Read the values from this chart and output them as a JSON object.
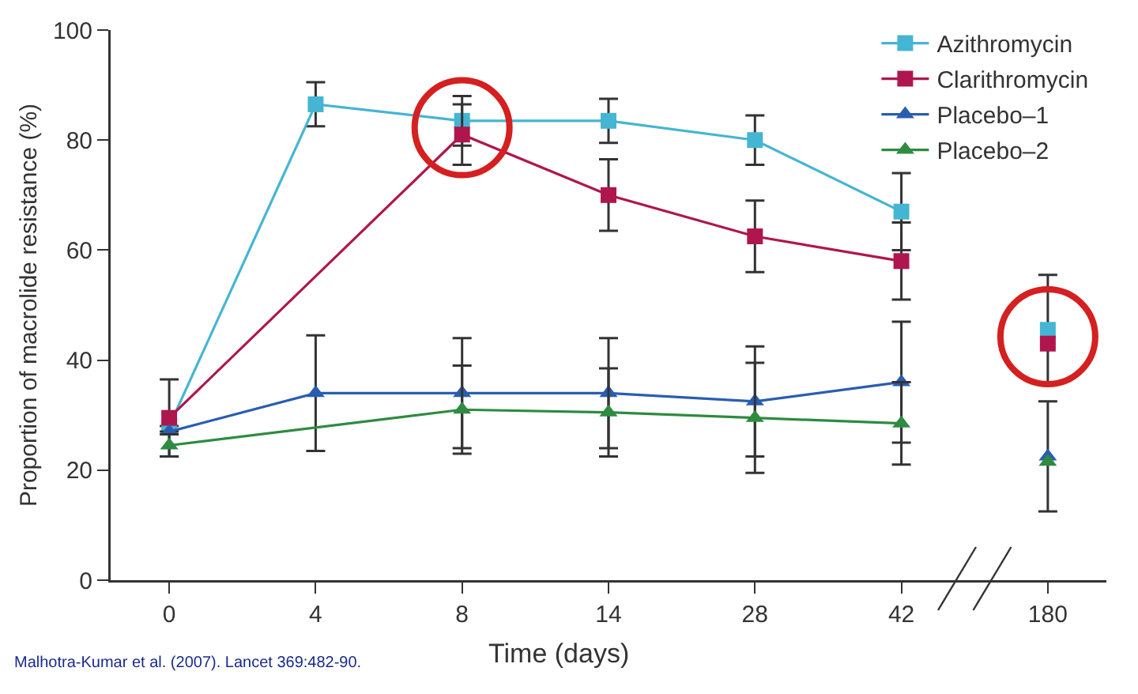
{
  "chart_data": {
    "type": "line",
    "xlabel": "Time (days)",
    "ylabel": "Proportion of macrolide resistance (%)",
    "categories": [
      "0",
      "4",
      "8",
      "14",
      "28",
      "42",
      "180"
    ],
    "ylim": [
      0,
      100
    ],
    "yticks": [
      0,
      20,
      40,
      60,
      80,
      100
    ],
    "grid": false,
    "legend": "top right",
    "line_style": "solid",
    "series": [
      {
        "name": "Azithromycin",
        "color": "#45b5d3",
        "marker": "square",
        "values": [
          28,
          86.5,
          83.5,
          83.5,
          80,
          67,
          null
        ],
        "errors": [
          null,
          4,
          4.5,
          4,
          4.5,
          7,
          null
        ]
      },
      {
        "name": "Clarithromycin",
        "color": "#b0164e",
        "marker": "square",
        "values": [
          29.5,
          null,
          81,
          70,
          62.5,
          58,
          null
        ],
        "errors": [
          7,
          null,
          5.5,
          6.5,
          6.5,
          7,
          null
        ]
      },
      {
        "name": "Placebo–1",
        "color": "#2a5db0",
        "marker": "triangle",
        "values": [
          27,
          34,
          34,
          34,
          32.5,
          36,
          null
        ],
        "errors": [
          null,
          10.5,
          10,
          10,
          10,
          11,
          null
        ]
      },
      {
        "name": "Placebo–2",
        "color": "#2e8b40",
        "marker": "triangle",
        "values": [
          24.5,
          null,
          31,
          30.5,
          29.5,
          28.5,
          null
        ],
        "errors": [
          2,
          null,
          8,
          8,
          10,
          7.5,
          null
        ]
      },
      {
        "type": "scatter",
        "color": "#45b5d3",
        "marker": "square",
        "values": [
          null,
          null,
          null,
          null,
          null,
          null,
          45.5
        ],
        "errors": [
          null,
          null,
          null,
          null,
          null,
          null,
          10
        ]
      },
      {
        "type": "scatter",
        "color": "#b0164e",
        "marker": "square",
        "values": [
          null,
          null,
          null,
          null,
          null,
          null,
          43
        ]
      },
      {
        "type": "scatter",
        "color": "#2a5db0",
        "marker": "triangle",
        "values": [
          null,
          null,
          null,
          null,
          null,
          null,
          22.5
        ],
        "errors": [
          null,
          null,
          null,
          null,
          null,
          null,
          10
        ]
      },
      {
        "type": "scatter",
        "color": "#2e8b40",
        "marker": "triangle",
        "values": [
          null,
          null,
          null,
          null,
          null,
          null,
          21.5
        ]
      }
    ],
    "annotations": [
      "Malhotra-Kumar et al. (2007). Lancet 369:482-90."
    ]
  }
}
